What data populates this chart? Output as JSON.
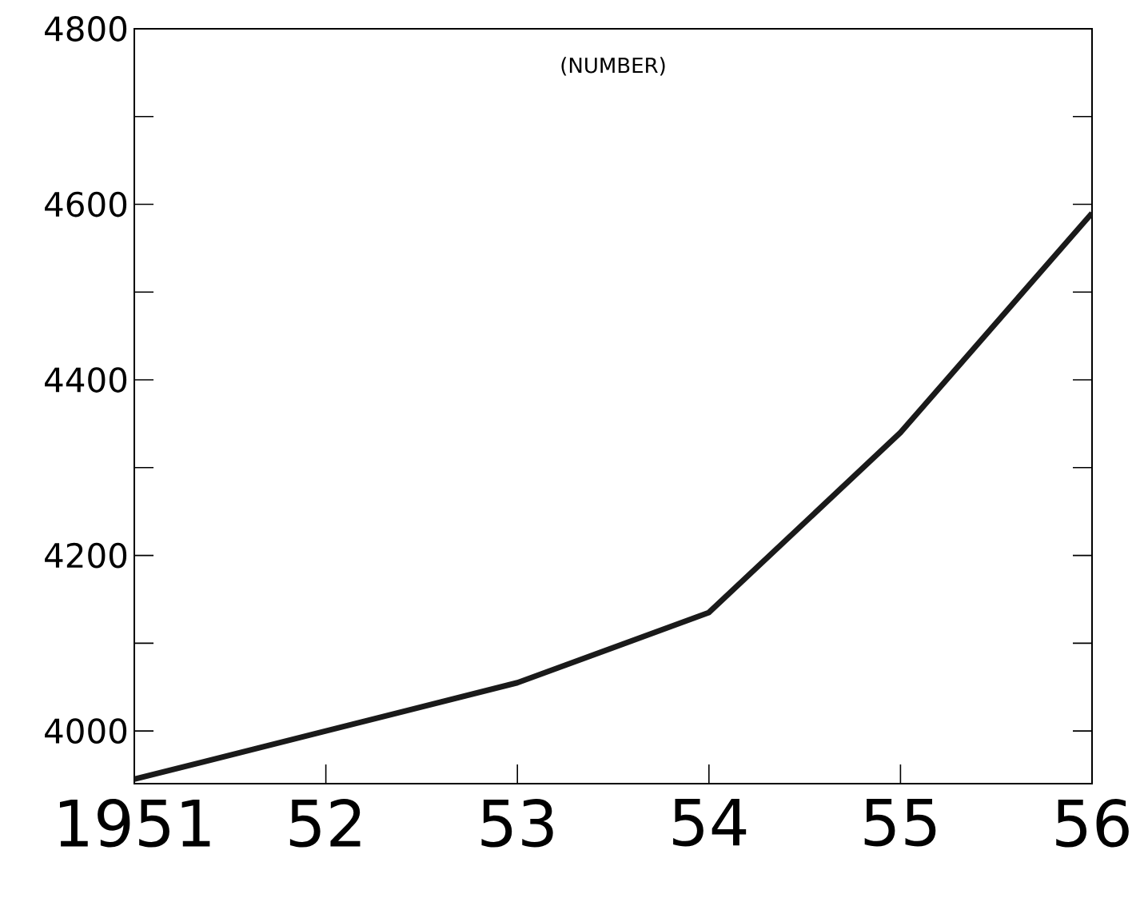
{
  "chart_data": {
    "type": "line",
    "title": "(NUMBER)",
    "categories": [
      "1951",
      "52",
      "53",
      "54",
      "55",
      "56"
    ],
    "values": [
      3945,
      4000,
      4055,
      4135,
      4340,
      4590
    ],
    "color": "#1a1a1a",
    "line_style": "solid",
    "marker": "none",
    "ylim": [
      3940,
      4800
    ],
    "yticks": [
      4000,
      {
        "value": 4100,
        "label": null
      },
      4200,
      {
        "value": 4300,
        "label": null
      },
      4400,
      {
        "value": 4500,
        "label": null
      },
      4600,
      {
        "value": 4700,
        "label": null
      },
      4800
    ],
    "grid": false
  }
}
